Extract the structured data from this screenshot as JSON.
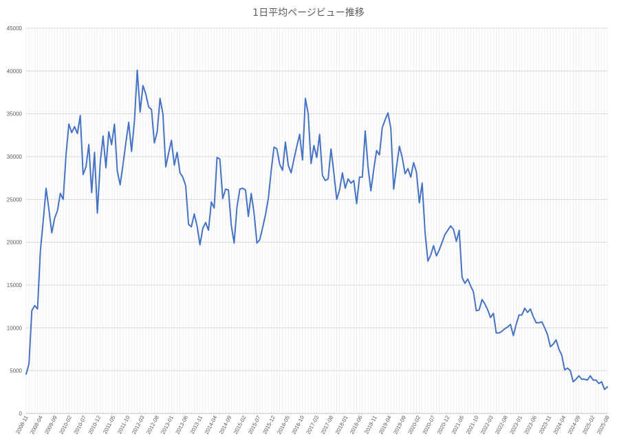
{
  "chart_data": {
    "type": "line",
    "title": "1日平均ページビュー推移",
    "xlabel": "",
    "ylabel": "",
    "ylim": [
      0,
      45000
    ],
    "yticks": [
      0,
      5000,
      10000,
      15000,
      20000,
      25000,
      30000,
      35000,
      40000,
      45000
    ],
    "grid": true,
    "legend": "none",
    "line_color": "#4472C4",
    "x_tick_labels": [
      "2008-11",
      "2009-04",
      "2009-09",
      "2010-02",
      "2010-07",
      "2010-12",
      "2011-05",
      "2011-10",
      "2012-03",
      "2012-08",
      "2013-01",
      "2013-06",
      "2013-11",
      "2014-04",
      "2014-09",
      "2015-02",
      "2015-07",
      "2015-12",
      "2016-05",
      "2016-10",
      "2017-03",
      "2017-08",
      "2018-01",
      "2018-06",
      "2018-11",
      "2019-04",
      "2019-09",
      "2020-02",
      "2020-07",
      "2020-12",
      "2021-05",
      "2021-10",
      "2022-03",
      "2022-08",
      "2023-01",
      "2023-06",
      "2023-11",
      "2024-04",
      "2024-09",
      "2025-02",
      "2025-08"
    ],
    "x_start": "2008-11",
    "x_end": "2025-09",
    "series": [
      {
        "values": [
          4600,
          5800,
          12000,
          12600,
          12200,
          19000,
          22500,
          26300,
          23800,
          21100,
          22800,
          23700,
          25700,
          25000,
          30200,
          33800,
          32800,
          33500,
          32700,
          34800,
          27900,
          28800,
          31400,
          25800,
          30500,
          23400,
          29300,
          32400,
          28700,
          32900,
          31400,
          33800,
          28300,
          26700,
          29100,
          31600,
          34000,
          30600,
          34100,
          40100,
          35200,
          38300,
          37300,
          35800,
          35500,
          31600,
          32900,
          36800,
          35000,
          28800,
          30400,
          31900,
          29000,
          30500,
          28100,
          27600,
          26600,
          22100,
          21800,
          23300,
          21900,
          19700,
          21600,
          22300,
          21400,
          24700,
          24000,
          29900,
          29700,
          25100,
          26200,
          26100,
          22000,
          19900,
          24100,
          26200,
          26300,
          26100,
          23000,
          25700,
          23400,
          19900,
          20300,
          21700,
          23200,
          25100,
          28300,
          31100,
          30900,
          29100,
          28400,
          31700,
          29000,
          28100,
          29700,
          31200,
          32600,
          29600,
          36800,
          35000,
          29200,
          31300,
          29900,
          32600,
          27800,
          27200,
          27400,
          30900,
          28100,
          25000,
          26100,
          28100,
          26300,
          27400,
          26900,
          27200,
          24500,
          27600,
          27600,
          33000,
          28800,
          26000,
          28500,
          30700,
          30200,
          33400,
          34300,
          35100,
          33300,
          26200,
          28800,
          31200,
          29900,
          28000,
          28600,
          27600,
          29300,
          28200,
          24600,
          26900,
          21200,
          17800,
          18500,
          19600,
          18400,
          19100,
          20000,
          20900,
          21400,
          21900,
          21500,
          20100,
          21400,
          15900,
          15200,
          15700,
          14900,
          14200,
          12000,
          12100,
          13300,
          12800,
          12100,
          11200,
          11700,
          9400,
          9400,
          9600,
          9900,
          10100,
          10400,
          9100,
          10400,
          11500,
          11500,
          12300,
          11800,
          12200,
          11300,
          10600,
          10600,
          10700,
          10000,
          9200,
          7800,
          8100,
          8600,
          7500,
          6800,
          5100,
          5300,
          5000,
          3700,
          4000,
          4400,
          4000,
          4000,
          3900,
          4400,
          3900,
          3900,
          3500,
          3700,
          2800,
          3100
        ]
      }
    ]
  }
}
